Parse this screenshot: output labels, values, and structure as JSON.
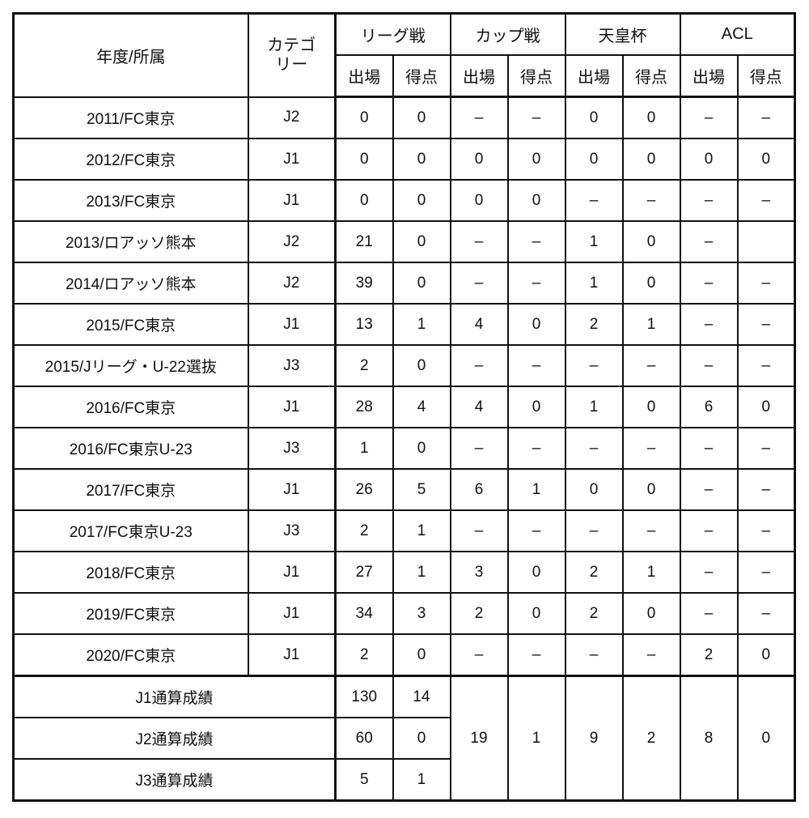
{
  "header": {
    "team": "年度/所属",
    "category": "カテゴリー",
    "groups": [
      "リーグ戦",
      "カップ戦",
      "天皇杯",
      "ACL"
    ],
    "apps": "出場",
    "goals": "得点"
  },
  "rows": [
    {
      "team": "2011/FC東京",
      "cat": "J2",
      "v": [
        "0",
        "0",
        "–",
        "–",
        "0",
        "0",
        "–",
        "–"
      ]
    },
    {
      "team": "2012/FC東京",
      "cat": "J1",
      "v": [
        "0",
        "0",
        "0",
        "0",
        "0",
        "0",
        "0",
        "0"
      ]
    },
    {
      "team": "2013/FC東京",
      "cat": "J1",
      "v": [
        "0",
        "0",
        "0",
        "0",
        "–",
        "–",
        "–",
        "–"
      ]
    },
    {
      "team": "2013/ロアッソ熊本",
      "cat": "J2",
      "v": [
        "21",
        "0",
        "–",
        "–",
        "1",
        "0",
        "–",
        ""
      ]
    },
    {
      "team": "2014/ロアッソ熊本",
      "cat": "J2",
      "v": [
        "39",
        "0",
        "–",
        "–",
        "1",
        "0",
        "–",
        "–"
      ]
    },
    {
      "team": "2015/FC東京",
      "cat": "J1",
      "v": [
        "13",
        "1",
        "4",
        "0",
        "2",
        "1",
        "–",
        "–"
      ]
    },
    {
      "team": "2015/Jリーグ・U-22選抜",
      "cat": "J3",
      "v": [
        "2",
        "0",
        "–",
        "–",
        "–",
        "–",
        "–",
        "–"
      ]
    },
    {
      "team": "2016/FC東京",
      "cat": "J1",
      "v": [
        "28",
        "4",
        "4",
        "0",
        "1",
        "0",
        "6",
        "0"
      ]
    },
    {
      "team": "2016/FC東京U-23",
      "cat": "J3",
      "v": [
        "1",
        "0",
        "–",
        "–",
        "–",
        "–",
        "–",
        "–"
      ]
    },
    {
      "team": "2017/FC東京",
      "cat": "J1",
      "v": [
        "26",
        "5",
        "6",
        "1",
        "0",
        "0",
        "–",
        "–"
      ]
    },
    {
      "team": "2017/FC東京U-23",
      "cat": "J3",
      "v": [
        "2",
        "1",
        "–",
        "–",
        "–",
        "–",
        "–",
        "–"
      ]
    },
    {
      "team": "2018/FC東京",
      "cat": "J1",
      "v": [
        "27",
        "1",
        "3",
        "0",
        "2",
        "1",
        "–",
        "–"
      ]
    },
    {
      "team": "2019/FC東京",
      "cat": "J1",
      "v": [
        "34",
        "3",
        "2",
        "0",
        "2",
        "0",
        "–",
        "–"
      ]
    },
    {
      "team": "2020/FC東京",
      "cat": "J1",
      "v": [
        "2",
        "0",
        "–",
        "–",
        "–",
        "–",
        "2",
        "0"
      ]
    }
  ],
  "totals": {
    "rows": [
      {
        "label": "J1通算成績",
        "apps": "130",
        "goals": "14"
      },
      {
        "label": "J2通算成績",
        "apps": "60",
        "goals": "0"
      },
      {
        "label": "J3通算成績",
        "apps": "5",
        "goals": "1"
      }
    ],
    "shared": [
      "19",
      "1",
      "9",
      "2",
      "8",
      "0"
    ]
  }
}
